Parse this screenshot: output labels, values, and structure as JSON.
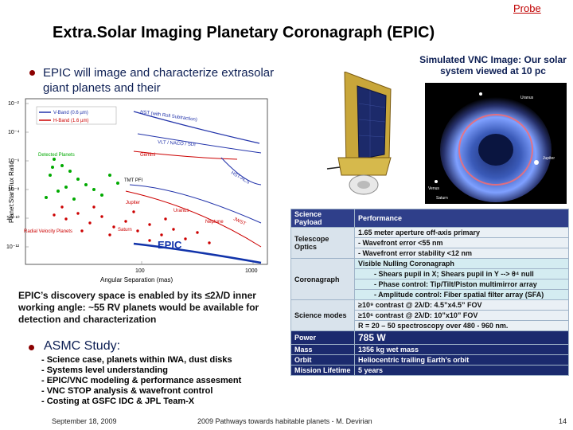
{
  "probe_link": "Probe",
  "title": "Extra.Solar Imaging Planetary Coronagraph (EPIC)",
  "epic_bullet": "EPIC will image and characterize extrasolar giant planets and their",
  "vnc_caption": "Simulated VNC Image:  Our solar system viewed at 10 pc",
  "plot": {
    "ylabel": "Planet:Star Flux Ratio",
    "xlabel": "Angular Separation (mas)",
    "y_ticks": [
      "10⁻²",
      "10⁻⁴",
      "10⁻⁶",
      "10⁻⁸",
      "10⁻¹⁰",
      "10⁻¹²"
    ],
    "x_ticks": [
      "100",
      "1000"
    ],
    "legend": [
      "V-Band (0.6 µm)",
      "H-Band (1.6 µm)"
    ],
    "curve_labels": [
      "HST (with Roll Subtraction)",
      "VLT / NACO / SDI",
      "Gemini",
      "HST-ACS",
      "TMT PFI",
      "JWST",
      "EPIC"
    ],
    "group_labels": [
      "Detected Planets",
      "Radial Velocity Planets",
      "Saturn",
      "Jupiter",
      "Uranus",
      "Neptune"
    ],
    "colors": {
      "v_band": "#2233aa",
      "h_band": "#cc0000",
      "detected": "#00aa00",
      "rv": "#cc0000",
      "epic": "#1133aa"
    }
  },
  "vnc_labels": [
    "Uranus",
    "Jupiter",
    "Venus",
    "Saturn"
  ],
  "discovery_text": "EPIC’s discovery space is enabled by its ≤2λ/D inner working angle: ~55 RV planets would be available for detection and characterization",
  "asmc": {
    "title": "ASMC Study:",
    "items": [
      "- Science case, planets within IWA, dust disks",
      "- Systems level understanding",
      "- EPIC/VNC modeling & performance assesment",
      "- VNC STOP analysis & wavefront control",
      "- Costing at GSFC IDC & JPL Team-X"
    ]
  },
  "table": {
    "headers": [
      "Science Payload",
      "Performance"
    ],
    "rows": {
      "optics": {
        "cat": "Telescope Optics",
        "v1": "1.65 meter aperture off-axis primary",
        "v2": "- Wavefront error <55 nm",
        "v3": "- Wavefront error stability <12 nm"
      },
      "corona": {
        "cat": "Coronagraph",
        "v1": "Visible Nulling Coronagraph",
        "v2": "- Shears pupil in X; Shears pupil in Y  -->  θ⁴ null",
        "v3": "- Phase control: Tip/Tilt/Piston multimirror array",
        "v4": "- Amplitude control: Fiber spatial filter array (SFA)"
      },
      "modes": {
        "cat": "Science modes",
        "v1": "≥10⁹ contrast @ 2λ/D: 4.5”x4.5” FOV",
        "v2": "≥10⁶ contrast @ 2λ/D: 10”x10” FOV",
        "v3": "R = 20 – 50 spectroscopy over 480 - 960 nm."
      },
      "power": {
        "cat": "Power",
        "v1": "785 W"
      },
      "mass": {
        "cat": "Mass",
        "v1": "1356 kg wet mass"
      },
      "orbit": {
        "cat": "Orbit",
        "v1": "Heliocentric trailing Earth’s orbit"
      },
      "lifetime": {
        "cat": "Mission Lifetime",
        "v1": "5 years"
      }
    }
  },
  "footer": {
    "date": "September 18, 2009",
    "center": "2009 Pathways towards habitable planets - M. Devirian",
    "page": "14"
  }
}
